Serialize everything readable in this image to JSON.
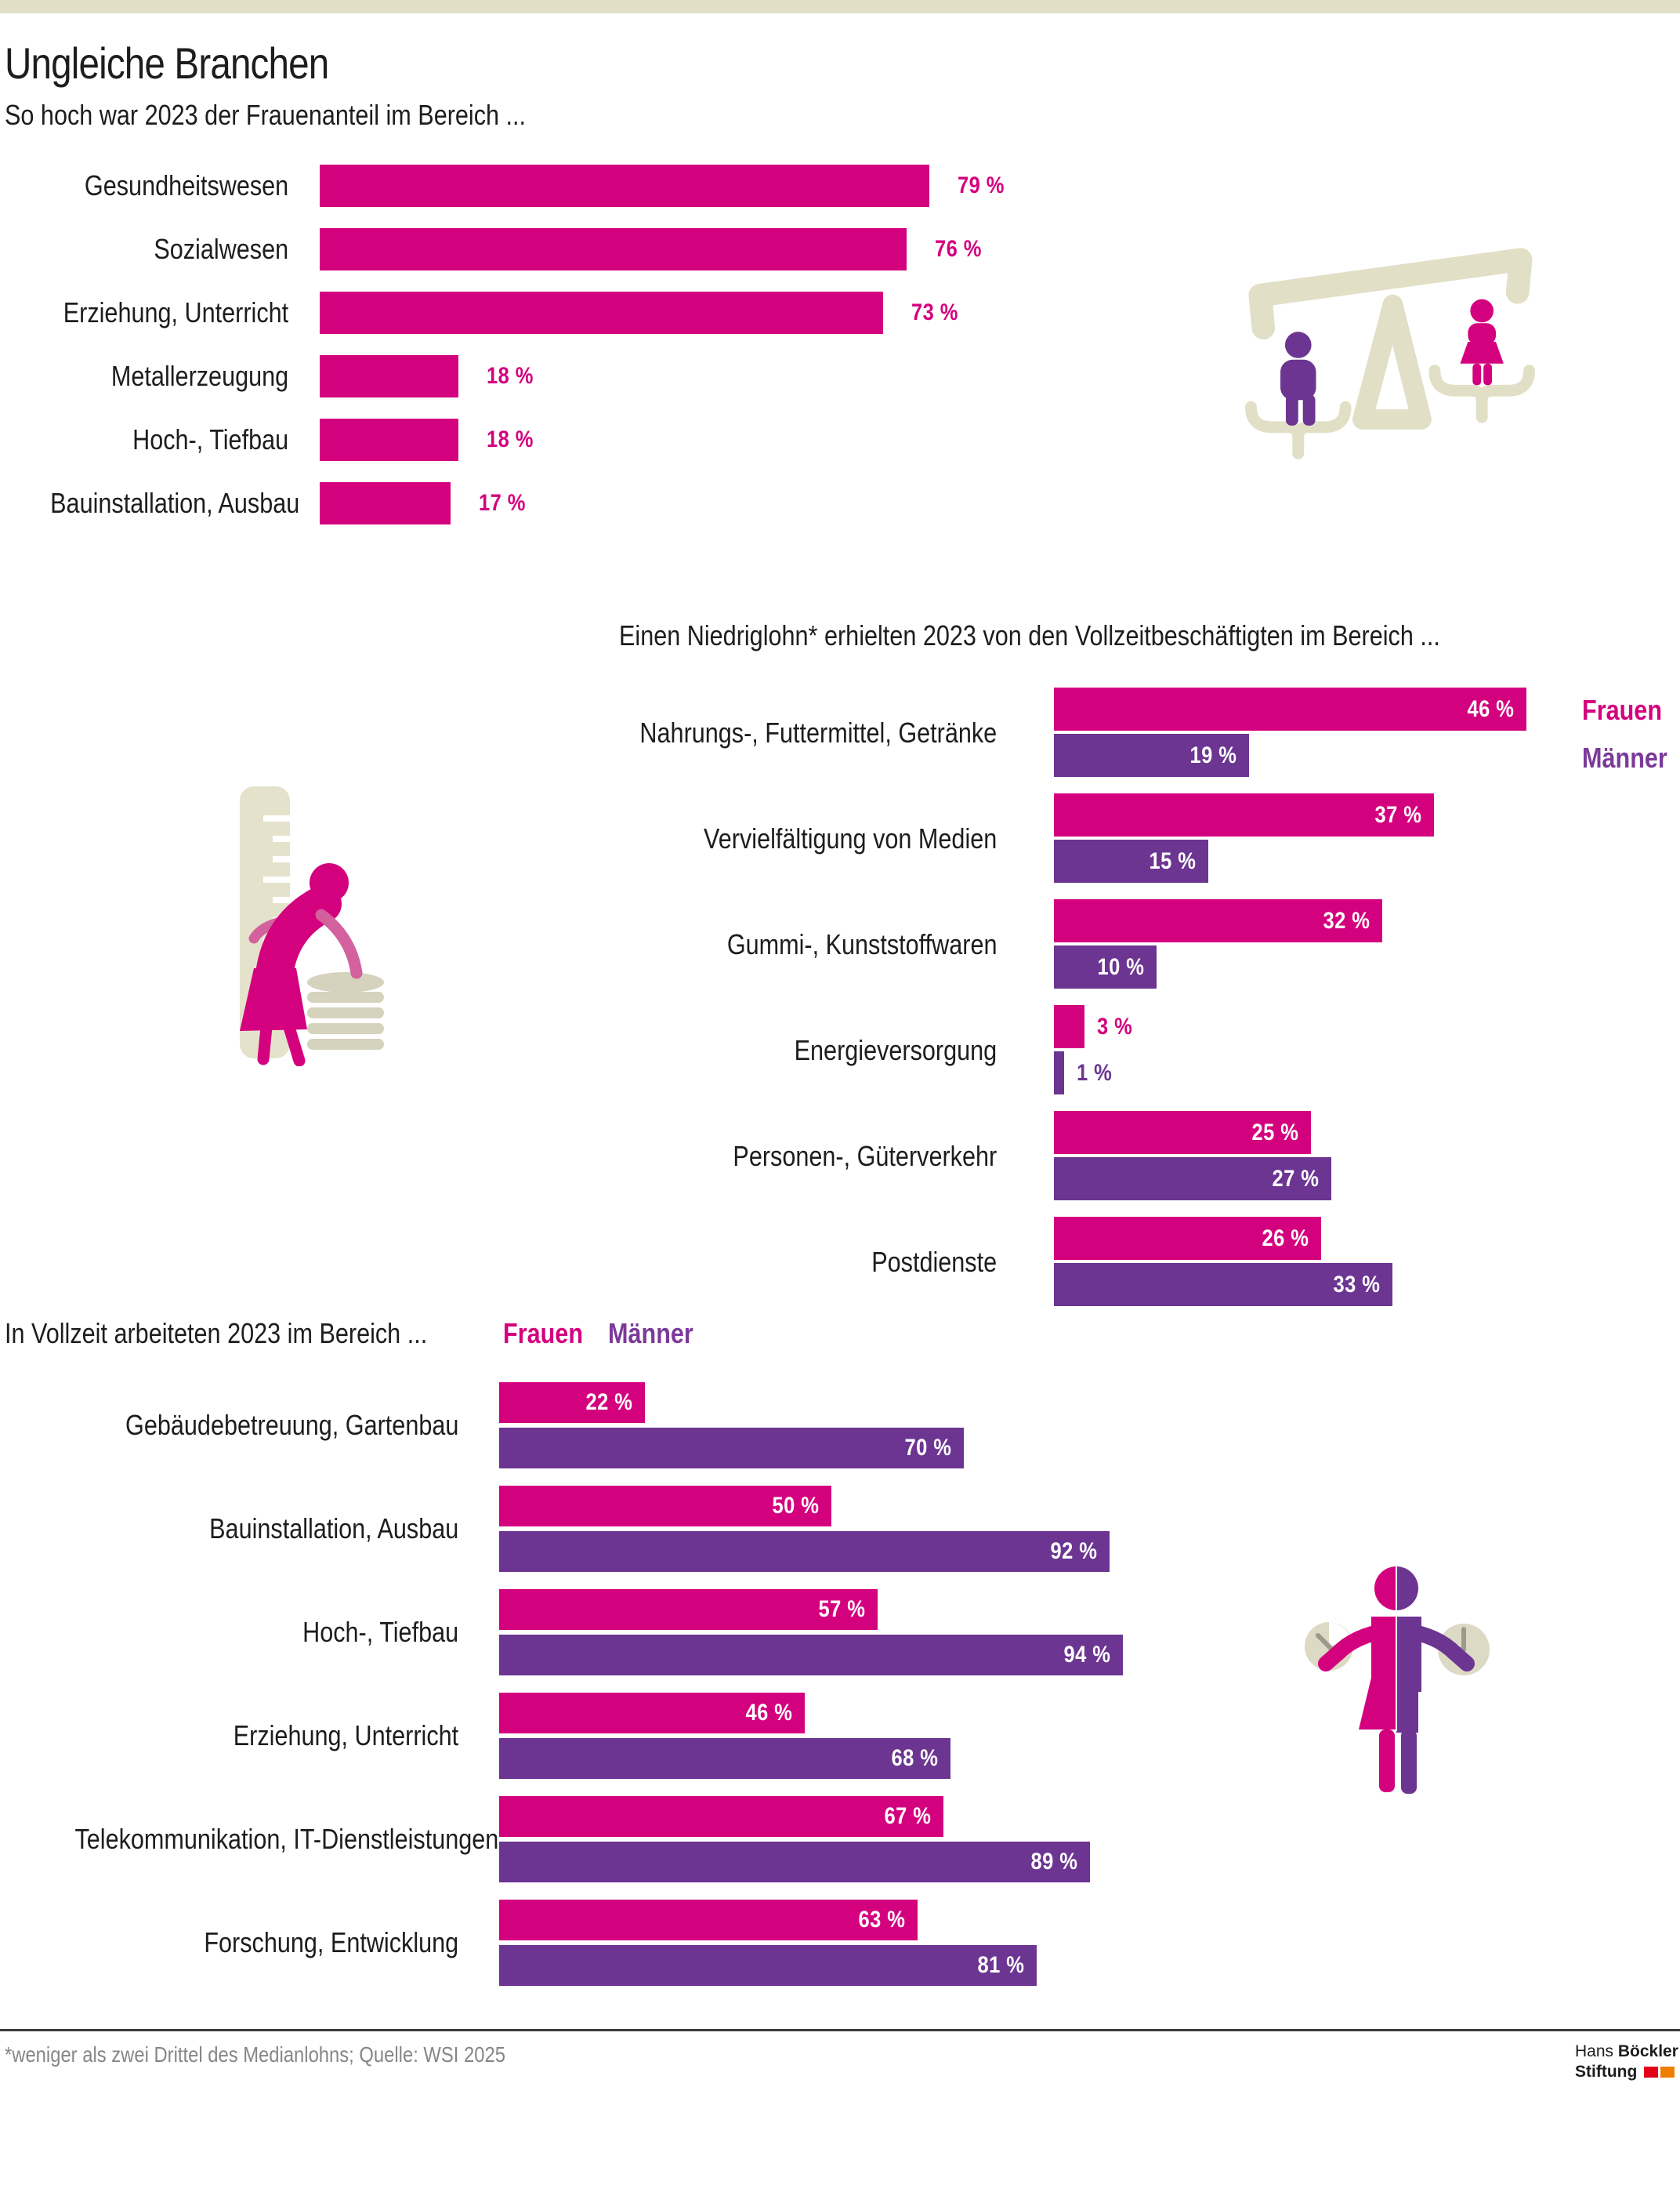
{
  "page": {
    "title": "Ungleiche Branchen",
    "footnote": "*weniger als zwei Drittel des Medianlohns; Quelle: WSI 2025",
    "logo": {
      "line1_light": "Hans",
      "line1_bold": "Böckler",
      "line2_bold": "Stiftung"
    }
  },
  "legend": {
    "women": "Frauen",
    "men": "Männer"
  },
  "colors": {
    "women": "#d4017f",
    "women_light": "#d2619e",
    "men": "#6b3591",
    "men_text": "#7b3a99",
    "beige": "#e2dfc7",
    "beige_dark": "#d5d2bd",
    "text": "#1d1d1b",
    "muted": "#868686",
    "divider": "#3c3c3b",
    "value_on_bar": "#ffffff",
    "logo_red": "#e2001a",
    "logo_orange": "#ef7d00"
  },
  "icons": {
    "scale": "balance-scale-icon",
    "measure": "ruler-coins-icon",
    "worktime": "split-gender-clocks-icon"
  },
  "value_suffix": " %",
  "chart_data": [
    {
      "type": "bar",
      "orientation": "horizontal",
      "title": "So hoch war 2023 der Frauenanteil im Bereich ...",
      "unit": "%",
      "xlim": [
        0,
        100
      ],
      "grid": false,
      "categories": [
        "Gesundheitswesen",
        "Sozialwesen",
        "Erziehung, Unterricht",
        "Metallerzeugung",
        "Hoch-, Tiefbau",
        "Bauinstallation, Ausbau"
      ],
      "values": [
        79,
        76,
        73,
        18,
        18,
        17
      ]
    },
    {
      "type": "bar",
      "orientation": "horizontal",
      "title": "Einen Niedriglohn* erhielten 2023 von den Vollzeitbeschäftigten im Bereich ...",
      "unit": "%",
      "xlim": [
        0,
        100
      ],
      "grid": false,
      "legend_position": "right",
      "categories": [
        "Nahrungs-, Futtermittel, Getränke",
        "Vervielfältigung von Medien",
        "Gummi-, Kunststoffwaren",
        "Energieversorgung",
        "Personen-, Güterverkehr",
        "Postdienste"
      ],
      "series": [
        {
          "name": "Frauen",
          "values": [
            46,
            37,
            32,
            3,
            25,
            26
          ]
        },
        {
          "name": "Männer",
          "values": [
            19,
            15,
            10,
            1,
            27,
            33
          ]
        }
      ]
    },
    {
      "type": "bar",
      "orientation": "horizontal",
      "title": "In Vollzeit arbeiteten 2023 im Bereich ...",
      "unit": "%",
      "xlim": [
        0,
        100
      ],
      "grid": false,
      "legend_position": "top",
      "categories": [
        "Gebäudebetreuung, Gartenbau",
        "Bauinstallation, Ausbau",
        "Hoch-, Tiefbau",
        "Erziehung, Unterricht",
        "Telekommunikation, IT-Dienstleistungen",
        "Forschung, Entwicklung"
      ],
      "series": [
        {
          "name": "Frauen",
          "values": [
            22,
            50,
            57,
            46,
            67,
            63
          ]
        },
        {
          "name": "Männer",
          "values": [
            70,
            92,
            94,
            68,
            89,
            81
          ]
        }
      ]
    }
  ]
}
